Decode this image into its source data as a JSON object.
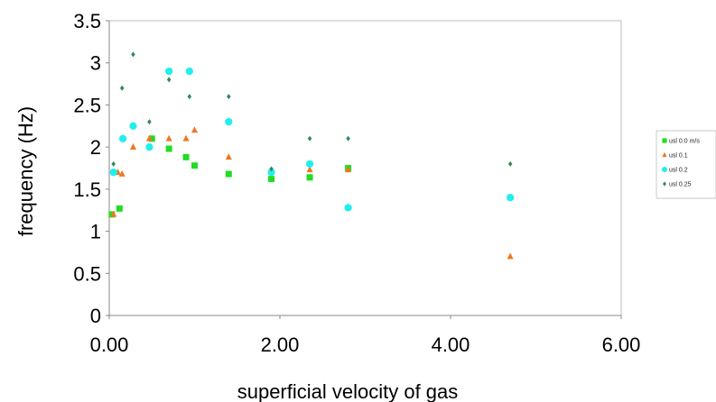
{
  "chart_data": {
    "type": "scatter",
    "title": "",
    "xlabel": "superficial velocity of gas",
    "ylabel": "frequency (Hz)",
    "xlim": [
      0,
      6
    ],
    "ylim": [
      0,
      3.5
    ],
    "x_ticks": [
      "0.00",
      "2.00",
      "4.00",
      "6.00"
    ],
    "y_ticks": [
      "0",
      "0.5",
      "1",
      "1.5",
      "2",
      "2.5",
      "3",
      "3.5"
    ],
    "grid": false,
    "legend_position": "right",
    "series": [
      {
        "name": "usl 0.0 m/s",
        "color": "#22dd22",
        "marker": "square",
        "points": [
          [
            0.03,
            1.2
          ],
          [
            0.12,
            1.27
          ],
          [
            0.5,
            2.1
          ],
          [
            0.7,
            1.98
          ],
          [
            0.9,
            1.88
          ],
          [
            1.0,
            1.78
          ],
          [
            1.4,
            1.68
          ],
          [
            1.9,
            1.62
          ],
          [
            2.35,
            1.64
          ],
          [
            2.8,
            1.75
          ]
        ]
      },
      {
        "name": "usl 0.1",
        "color": "#ee7722",
        "marker": "triangle",
        "points": [
          [
            0.05,
            1.2
          ],
          [
            0.1,
            1.7
          ],
          [
            0.15,
            1.68
          ],
          [
            0.28,
            2.0
          ],
          [
            0.47,
            2.1
          ],
          [
            0.7,
            2.1
          ],
          [
            0.9,
            2.1
          ],
          [
            1.0,
            2.2
          ],
          [
            1.4,
            1.88
          ],
          [
            1.9,
            1.72
          ],
          [
            2.35,
            1.73
          ],
          [
            2.8,
            1.73
          ],
          [
            4.7,
            0.7
          ]
        ]
      },
      {
        "name": "usl 0.2",
        "color": "#22eeee",
        "marker": "circle",
        "points": [
          [
            0.05,
            1.7
          ],
          [
            0.16,
            2.1
          ],
          [
            0.28,
            2.25
          ],
          [
            0.47,
            2.0
          ],
          [
            0.7,
            2.9
          ],
          [
            0.94,
            2.9
          ],
          [
            1.4,
            2.3
          ],
          [
            1.9,
            1.7
          ],
          [
            2.35,
            1.8
          ],
          [
            2.8,
            1.28
          ],
          [
            4.7,
            1.4
          ]
        ]
      },
      {
        "name": "usl 0.25",
        "color": "#2e8b57",
        "marker": "diamond",
        "points": [
          [
            0.05,
            1.8
          ],
          [
            0.15,
            2.7
          ],
          [
            0.28,
            3.1
          ],
          [
            0.47,
            2.3
          ],
          [
            0.7,
            2.8
          ],
          [
            0.94,
            2.6
          ],
          [
            1.4,
            2.6
          ],
          [
            1.9,
            1.74
          ],
          [
            2.35,
            2.1
          ],
          [
            2.8,
            2.1
          ],
          [
            4.7,
            1.8
          ]
        ]
      }
    ]
  }
}
